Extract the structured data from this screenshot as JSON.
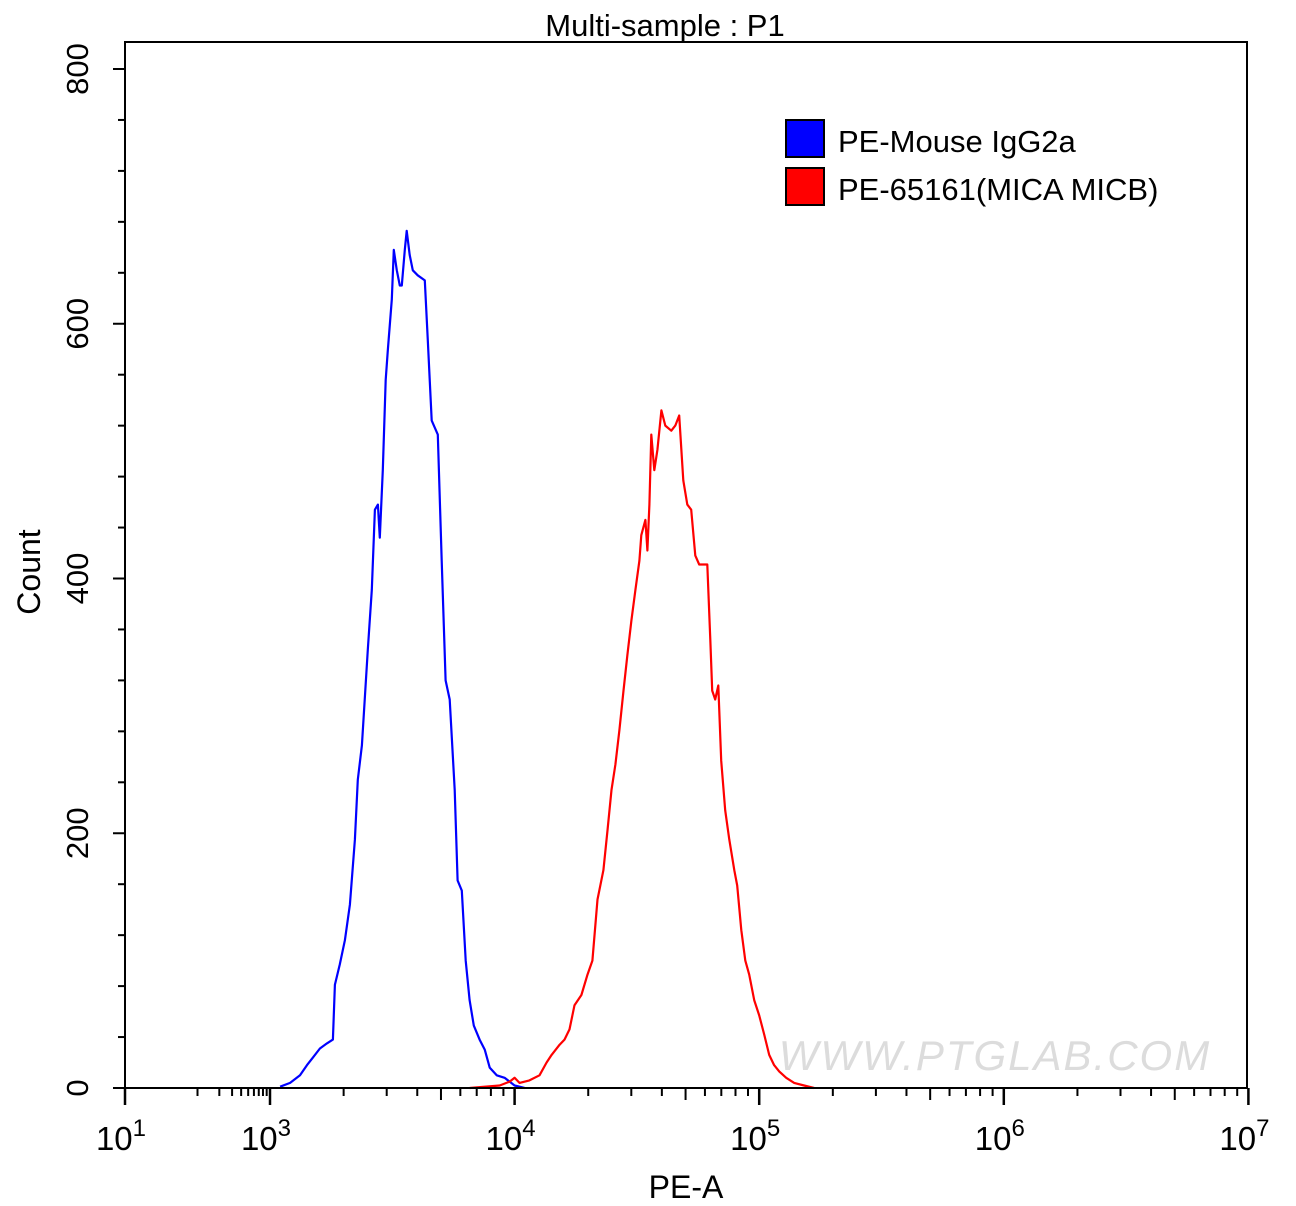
{
  "chart_data": {
    "type": "line",
    "title": "Multi-sample : P1",
    "xlabel": "PE-A",
    "ylabel": "Count",
    "x_scale": "log (biexponential display)",
    "xlim": [
      10,
      10000000
    ],
    "ylim": [
      0,
      800
    ],
    "grid": false,
    "legend_position": "top-right",
    "x_ticks": [
      {
        "base": "10",
        "exp": "1",
        "value": 10
      },
      {
        "base": "10",
        "exp": "3",
        "value": 1000
      },
      {
        "base": "10",
        "exp": "4",
        "value": 10000
      },
      {
        "base": "10",
        "exp": "5",
        "value": 100000
      },
      {
        "base": "10",
        "exp": "6",
        "value": 1000000
      },
      {
        "base": "10",
        "exp": "7",
        "value": 10000000
      }
    ],
    "y_ticks": [
      "0",
      "200",
      "400",
      "600",
      "800"
    ],
    "watermark": "WWW.PTGLAB.COM",
    "series": [
      {
        "name": "PE-Mouse IgG2a",
        "color": "#0000ff",
        "x": [
          1100,
          1208,
          1326,
          1416,
          1499,
          1600,
          1709,
          1808,
          1842,
          1930,
          2024,
          2122,
          2223,
          2286,
          2375,
          2512,
          2608,
          2685,
          2761,
          2812,
          2891,
          2973,
          3031,
          3146,
          3206,
          3298,
          3394,
          3458,
          3556,
          3623,
          3726,
          3834,
          4018,
          4295,
          4416,
          4581,
          4853,
          5035,
          5224,
          5427,
          5689,
          5848,
          6081,
          6310,
          6547,
          6808,
          7194,
          7551,
          7907,
          8453,
          9101,
          10000,
          10990
        ],
        "y": [
          1,
          4,
          10,
          18,
          24,
          31,
          35,
          38,
          81,
          97,
          116,
          144,
          195,
          242,
          269,
          344,
          391,
          454,
          458,
          432,
          485,
          556,
          579,
          619,
          658,
          642,
          630,
          630,
          658,
          673,
          654,
          642,
          638,
          634,
          587,
          524,
          513,
          414,
          320,
          305,
          234,
          163,
          155,
          100,
          69,
          49,
          38,
          30,
          16,
          10,
          8,
          2,
          0
        ]
      },
      {
        "name": "PE-65161(MICA MICB)",
        "color": "#ff0000",
        "x": [
          6547,
          8690,
          9547,
          10000,
          10476,
          11500,
          12640,
          13520,
          14160,
          15280,
          16000,
          16760,
          17580,
          18760,
          19860,
          20810,
          21830,
          23070,
          23990,
          24890,
          25830,
          26830,
          27870,
          28920,
          30030,
          31190,
          32370,
          32970,
          34270,
          34910,
          35560,
          36220,
          37240,
          38370,
          39810,
          41300,
          43730,
          45390,
          47100,
          48940,
          50800,
          52730,
          54790,
          56870,
          59030,
          61340,
          63100,
          64270,
          66070,
          68050,
          69950,
          72610,
          75460,
          79070,
          81300,
          84480,
          87700,
          91040,
          95440,
          100000,
          104800,
          109900,
          115100,
          120700,
          128900,
          139000,
          152600,
          167600
        ],
        "y": [
          0,
          2,
          5,
          8,
          4,
          6,
          10,
          20,
          26,
          34,
          38,
          46,
          65,
          73,
          89,
          100,
          148,
          171,
          203,
          234,
          254,
          281,
          312,
          340,
          367,
          391,
          414,
          434,
          446,
          422,
          458,
          513,
          485,
          501,
          532,
          520,
          516,
          520,
          528,
          477,
          458,
          454,
          418,
          411,
          411,
          411,
          352,
          312,
          305,
          316,
          257,
          218,
          195,
          171,
          159,
          124,
          100,
          89,
          69,
          57,
          42,
          26,
          18,
          13,
          8,
          4,
          2,
          0
        ]
      }
    ]
  }
}
